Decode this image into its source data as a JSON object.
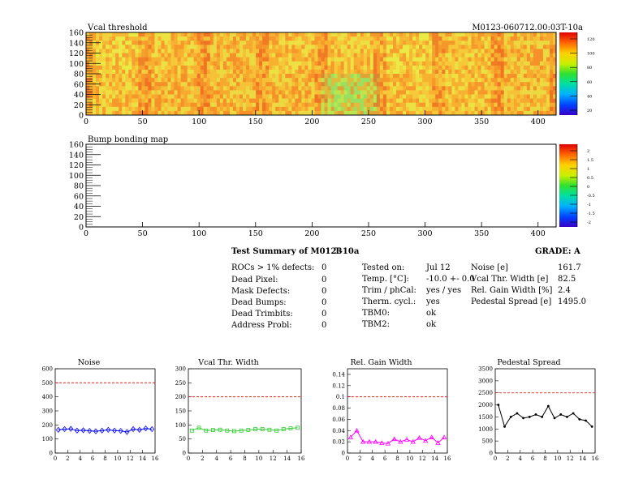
{
  "heatmaps": {
    "vcal": {
      "title": "Vcal threshold",
      "module_id": "M0123-060712.00:03T-10a",
      "x_ticks": [
        "0",
        "50",
        "100",
        "150",
        "200",
        "250",
        "300",
        "350",
        "400"
      ],
      "y_ticks": [
        "0",
        "20",
        "40",
        "60",
        "80",
        "100",
        "120",
        "140",
        "160"
      ],
      "color_scale_ticks": [
        "120",
        "100",
        "80",
        "60",
        "40",
        "20"
      ]
    },
    "bump": {
      "title": "Bump bonding map",
      "x_ticks": [
        "0",
        "50",
        "100",
        "150",
        "200",
        "250",
        "300",
        "350",
        "400"
      ],
      "y_ticks": [
        "0",
        "20",
        "40",
        "60",
        "80",
        "100",
        "120",
        "140",
        "160"
      ],
      "color_scale_ticks": [
        "2",
        "1.5",
        "1",
        "0.5",
        "0",
        "-0.5",
        "-1",
        "-1.5",
        "-2"
      ]
    }
  },
  "summary": {
    "title": "Test Summary of M0123",
    "module_tag": "T-10a",
    "grade_label": "GRADE:",
    "grade": "A",
    "defects": [
      {
        "label": "ROCs > 1% defects:",
        "value": "0"
      },
      {
        "label": "Dead Pixel:",
        "value": "0"
      },
      {
        "label": "Mask Defects:",
        "value": "0"
      },
      {
        "label": "Dead Bumps:",
        "value": "0"
      },
      {
        "label": "Dead Trimbits:",
        "value": "0"
      },
      {
        "label": "Address Probl:",
        "value": "0"
      }
    ],
    "conditions": [
      {
        "label": "Tested on:",
        "value": "Jul 12"
      },
      {
        "label": "Temp. [°C]:",
        "value": "-10.0 +- 0.0"
      },
      {
        "label": "Trim / phCal:",
        "value": "yes / yes"
      },
      {
        "label": "Therm. cycl.:",
        "value": "yes"
      },
      {
        "label": "TBM0:",
        "value": "ok"
      },
      {
        "label": "TBM2:",
        "value": "ok"
      }
    ],
    "results": [
      {
        "label": "Noise [e]",
        "value": "161.7"
      },
      {
        "label": "Vcal Thr. Width [e]",
        "value": "82.5"
      },
      {
        "label": "Rel. Gain Width [%]",
        "value": "2.4"
      },
      {
        "label": "Pedestal Spread [e]",
        "value": "1495.0"
      }
    ]
  },
  "chart_data": [
    {
      "type": "line",
      "title": "Noise",
      "x": [
        0,
        1,
        2,
        3,
        4,
        5,
        6,
        7,
        8,
        9,
        10,
        11,
        12,
        13,
        14,
        15
      ],
      "values": [
        165,
        170,
        172,
        160,
        162,
        158,
        155,
        160,
        165,
        160,
        158,
        150,
        170,
        165,
        175,
        170
      ],
      "ylim": [
        0,
        600
      ],
      "xlim": [
        0,
        16
      ],
      "y_ticks": [
        0,
        100,
        200,
        300,
        400,
        500,
        600
      ],
      "x_ticks": [
        0,
        2,
        4,
        6,
        8,
        10,
        12,
        14,
        16
      ],
      "threshold": 500,
      "color": "#0000ff",
      "marker": "diamond"
    },
    {
      "type": "line",
      "title": "Vcal Thr. Width",
      "x": [
        0,
        1,
        2,
        3,
        4,
        5,
        6,
        7,
        8,
        9,
        10,
        11,
        12,
        13,
        14,
        15
      ],
      "values": [
        80,
        90,
        80,
        82,
        83,
        80,
        78,
        80,
        82,
        85,
        85,
        83,
        80,
        85,
        88,
        90
      ],
      "ylim": [
        0,
        300
      ],
      "xlim": [
        0,
        16
      ],
      "y_ticks": [
        0,
        50,
        100,
        150,
        200,
        250,
        300
      ],
      "x_ticks": [
        0,
        2,
        4,
        6,
        8,
        10,
        12,
        14,
        16
      ],
      "threshold": 200,
      "color": "#33cc33",
      "marker": "square"
    },
    {
      "type": "line",
      "title": "Rel. Gain Width",
      "x": [
        0,
        1,
        2,
        3,
        4,
        5,
        6,
        7,
        8,
        9,
        10,
        11,
        12,
        13,
        14,
        15
      ],
      "values": [
        0.028,
        0.04,
        0.02,
        0.02,
        0.02,
        0.018,
        0.017,
        0.025,
        0.02,
        0.024,
        0.02,
        0.027,
        0.022,
        0.028,
        0.018,
        0.028
      ],
      "ylim": [
        0,
        0.15
      ],
      "xlim": [
        0,
        16
      ],
      "y_ticks": [
        0,
        0.02,
        0.04,
        0.06,
        0.08,
        0.1,
        0.12,
        0.14
      ],
      "y_tick_labels": [
        "0",
        "0.02",
        "0.04",
        "0.06",
        "0.08",
        "0.1",
        "0.12",
        "0.14"
      ],
      "x_ticks": [
        0,
        2,
        4,
        6,
        8,
        10,
        12,
        14,
        16
      ],
      "threshold": 0.1,
      "color": "#ff00ff",
      "marker": "triangle"
    },
    {
      "type": "line",
      "title": "Pedestal Spread",
      "x": [
        0,
        1,
        2,
        3,
        4,
        5,
        6,
        7,
        8,
        9,
        10,
        11,
        12,
        13,
        14,
        15
      ],
      "values": [
        2000,
        1100,
        1500,
        1650,
        1450,
        1500,
        1600,
        1500,
        1950,
        1450,
        1600,
        1500,
        1650,
        1400,
        1350,
        1100
      ],
      "ylim": [
        0,
        3500
      ],
      "xlim": [
        0,
        16
      ],
      "y_ticks": [
        0,
        500,
        1000,
        1500,
        2000,
        2500,
        3000,
        3500
      ],
      "x_ticks": [
        0,
        2,
        4,
        6,
        8,
        10,
        12,
        14,
        16
      ],
      "threshold": 2500,
      "color": "#000000",
      "marker": "dot"
    }
  ]
}
